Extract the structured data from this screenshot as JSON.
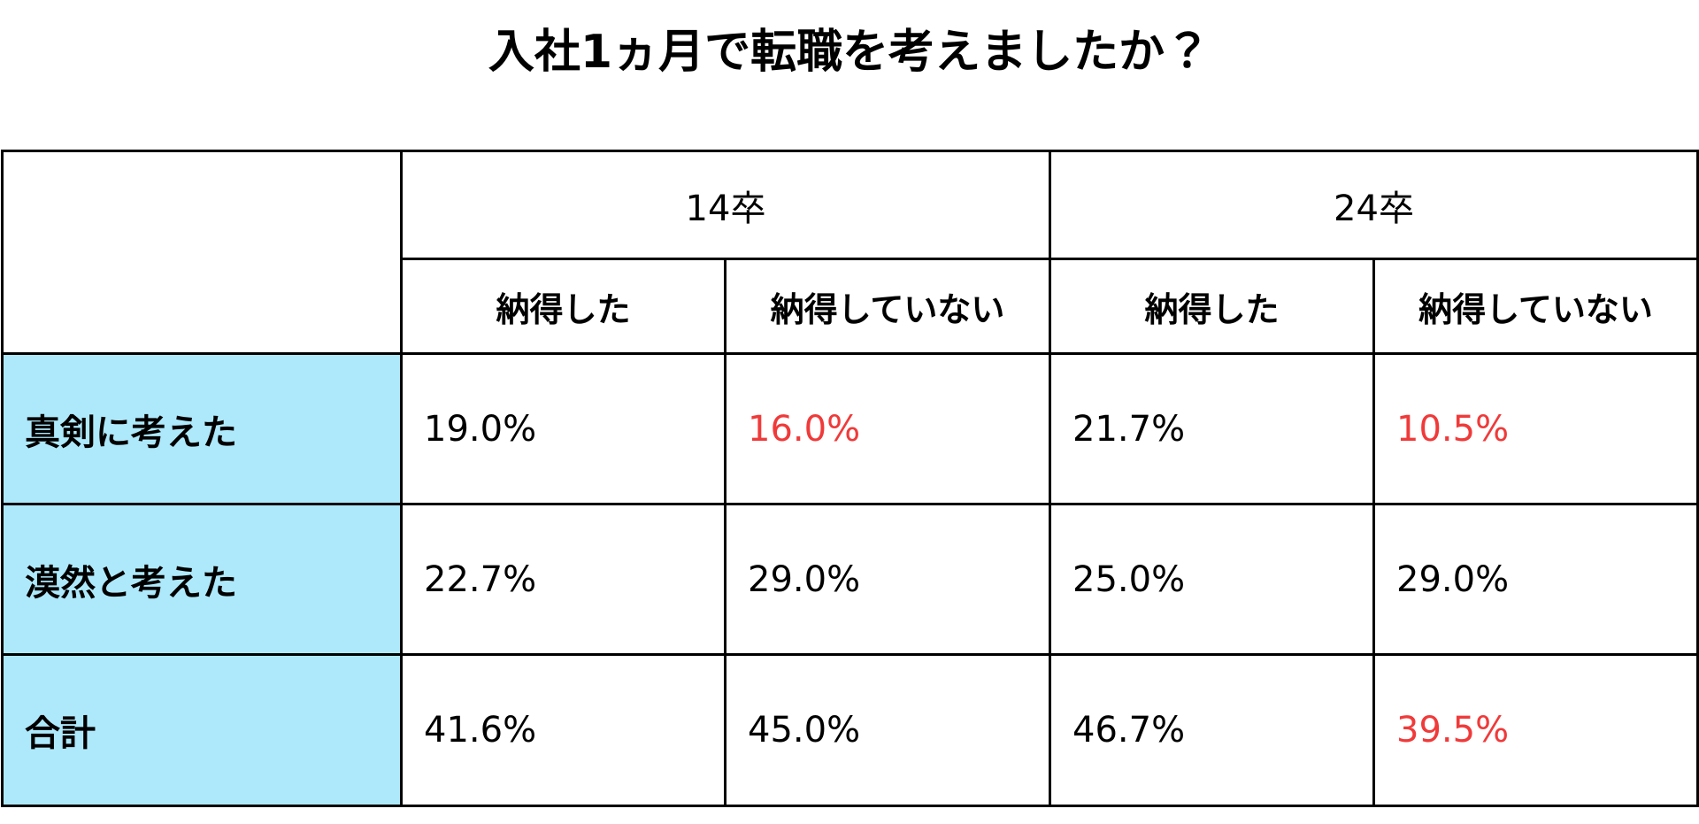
{
  "title": "入社1ヵ月で転職を考えましたか？",
  "table": {
    "groups": [
      "14卒",
      "24卒"
    ],
    "subheaders": [
      "納得した",
      "納得していない",
      "納得した",
      "納得していない"
    ],
    "label_background": "#aee9fb",
    "rows": [
      {
        "label": "真剣に考えた",
        "cells": [
          {
            "text": "19.0%",
            "color": "#000000"
          },
          {
            "text": "16.0%",
            "color": "#f03a3a"
          },
          {
            "text": "21.7%",
            "color": "#000000"
          },
          {
            "text": "10.5%",
            "color": "#f03a3a"
          }
        ]
      },
      {
        "label": "漠然と考えた",
        "cells": [
          {
            "text": "22.7%",
            "color": "#000000"
          },
          {
            "text": "29.0%",
            "color": "#000000"
          },
          {
            "text": "25.0%",
            "color": "#000000"
          },
          {
            "text": "29.0%",
            "color": "#000000"
          }
        ]
      },
      {
        "label": "合計",
        "cells": [
          {
            "text": "41.6%",
            "color": "#000000"
          },
          {
            "text": "45.0%",
            "color": "#000000"
          },
          {
            "text": "46.7%",
            "color": "#000000"
          },
          {
            "text": "39.5%",
            "color": "#f03a3a"
          }
        ]
      }
    ]
  }
}
